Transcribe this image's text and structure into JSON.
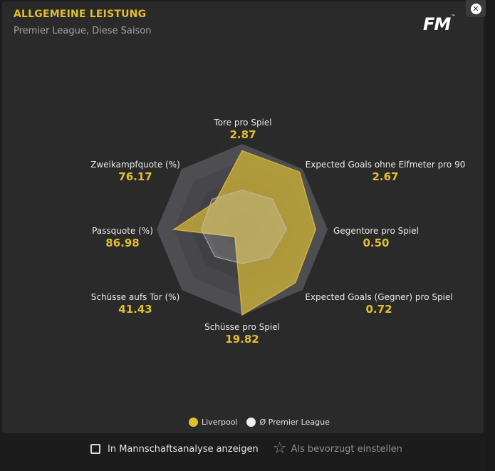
{
  "header": {
    "title": "ALLGEMEINE LEISTUNG",
    "subtitle": "Premier League, Diese Saison",
    "logo_text": "FM",
    "logo_tm": "™"
  },
  "close_button": {
    "glyph": "✕"
  },
  "chart_data": {
    "type": "radar",
    "axes": [
      {
        "name": "Tore pro Spiel",
        "value": "2.87"
      },
      {
        "name": "Expected Goals ohne Elfmeter pro 90",
        "value": "2.67"
      },
      {
        "name": "Gegentore pro Spiel",
        "value": "0.50"
      },
      {
        "name": "Expected Goals (Gegner) pro Spiel",
        "value": "0.72"
      },
      {
        "name": "Schüsse pro Spiel",
        "value": "19.82"
      },
      {
        "name": "Schüsse aufs Tor (%)",
        "value": "41.43"
      },
      {
        "name": "Passquote (%)",
        "value": "86.98"
      },
      {
        "name": "Zweikampfquote (%)",
        "value": "76.17"
      }
    ],
    "series": [
      {
        "name": "Liverpool",
        "color": "#c9ae3a",
        "normalized": [
          0.92,
          0.95,
          0.86,
          0.88,
          1.0,
          0.12,
          0.8,
          0.45
        ]
      },
      {
        "name": "Ø Premier League",
        "color": "#e6e6e6",
        "normalized": [
          0.46,
          0.5,
          0.52,
          0.46,
          0.4,
          0.45,
          0.48,
          0.5
        ]
      }
    ],
    "rings": 5,
    "grid_colors": [
      "#343436",
      "#3a3a3d",
      "#414144",
      "#47474b",
      "#4e4e52"
    ]
  },
  "legend": {
    "liverpool": "Liverpool",
    "league_avg": "Ø Premier League",
    "liverpool_color": "#e2bf2f",
    "league_color": "#eeeeee"
  },
  "footer": {
    "checkbox_label": "In Mannschaftsanalyse anzeigen",
    "favorite_label": "Als bevorzugt einstellen",
    "star_icon": "☆"
  }
}
